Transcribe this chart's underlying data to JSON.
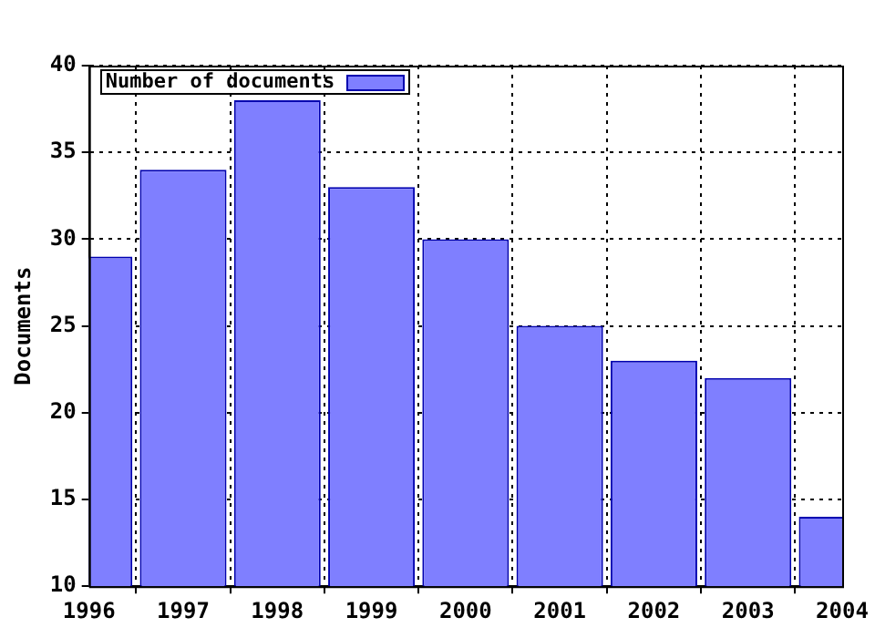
{
  "chart_data": {
    "type": "bar",
    "ylabel": "Documents",
    "x": [
      1996,
      1997,
      1998,
      1999,
      2000,
      2001,
      2002,
      2003,
      2004
    ],
    "series": [
      {
        "name": "Number of documents",
        "color": "#7f7fff",
        "values": [
          29,
          34,
          38,
          33,
          30,
          25,
          23,
          22,
          14
        ]
      }
    ],
    "xlim": [
      1996,
      2004
    ],
    "xticks": [
      1996,
      1997,
      1998,
      1999,
      2000,
      2001,
      2002,
      2003,
      2004
    ],
    "ylim": [
      10,
      40
    ],
    "yticks": [
      10,
      15,
      20,
      25,
      30,
      35,
      40
    ],
    "grid": true,
    "legend": "top left"
  }
}
